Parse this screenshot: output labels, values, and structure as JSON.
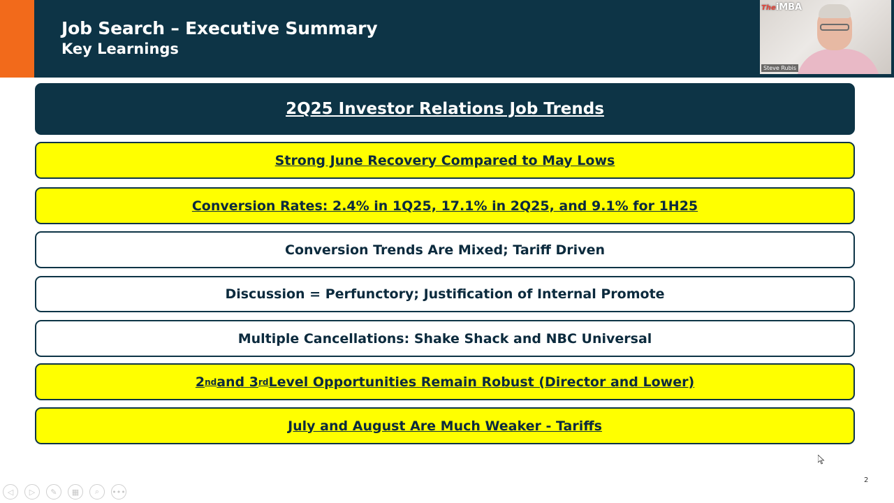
{
  "slide": {
    "title": "Job Search – Executive Summary",
    "subtitle": "Key Learnings",
    "page_number": "2",
    "heading": "2Q25 Investor Relations Job Trends",
    "items": [
      {
        "text": "Strong June Recovery Compared to May Lows",
        "style": "yellow"
      },
      {
        "text": "Conversion Rates: 2.4% in 1Q25, 17.1% in 2Q25, and 9.1% for 1H25",
        "style": "yellow"
      },
      {
        "text": "Conversion Trends Are Mixed; Tariff Driven",
        "style": "white"
      },
      {
        "text": "Discussion = Perfunctory; Justification of Internal Promote",
        "style": "white"
      },
      {
        "text": "Multiple Cancellations: Shake Shack and NBC Universal",
        "style": "white"
      },
      {
        "parts": {
          "p1": "2",
          "sup1": "nd",
          "p2": " and 3",
          "sup2": "rd",
          "p3": " Level Opportunities Remain Robust (Director and Lower)"
        },
        "style": "yellow"
      },
      {
        "text": "July and August Are Much Weaker - Tariffs",
        "style": "yellow"
      }
    ]
  },
  "video": {
    "brand_prefix": "The",
    "brand_name": "iMBA",
    "participant_name": "Steve Rubis"
  },
  "controls": {
    "prev_icon": "◁",
    "next_icon": "▷",
    "pen_icon": "✎",
    "slides_icon": "▦",
    "zoom_icon": "⌕",
    "more_icon": "•••"
  },
  "colors": {
    "navy": "#0d3446",
    "orange": "#f26a1b",
    "yellow": "#ffff00"
  }
}
